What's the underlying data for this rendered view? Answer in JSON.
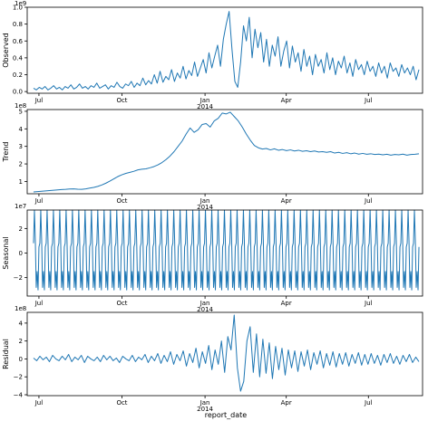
{
  "figure": {
    "xlabel": "report_date"
  },
  "colors": {
    "line": "#1f77b4",
    "axes": "#000000",
    "background": "#ffffff"
  },
  "chart_data": [
    {
      "type": "line",
      "ylabel": "Observed",
      "scale_label": "1e9",
      "x_ticks": [
        {
          "date": "2013-07-01",
          "label": "Jul",
          "sublabel": ""
        },
        {
          "date": "2013-10-01",
          "label": "Oct",
          "sublabel": ""
        },
        {
          "date": "2014-01-01",
          "label": "Jan",
          "sublabel": "2014"
        },
        {
          "date": "2014-04-01",
          "label": "Apr",
          "sublabel": ""
        },
        {
          "date": "2014-07-01",
          "label": "Jul",
          "sublabel": ""
        }
      ],
      "x_range": [
        "2013-06-18",
        "2014-08-30"
      ],
      "x_start": "2013-06-25",
      "x_end": "2014-08-26",
      "ylim": [
        -0.02,
        1.0
      ],
      "y_ticks": [
        0.0,
        0.2,
        0.4,
        0.6,
        0.8,
        1.0
      ],
      "y_tick_labels": [
        "0.0",
        "0.2",
        "0.4",
        "0.6",
        "0.8",
        "1.0"
      ],
      "values": [
        0.04,
        0.02,
        0.05,
        0.03,
        0.06,
        0.02,
        0.04,
        0.07,
        0.03,
        0.05,
        0.02,
        0.06,
        0.04,
        0.08,
        0.03,
        0.05,
        0.09,
        0.04,
        0.06,
        0.03,
        0.07,
        0.05,
        0.1,
        0.04,
        0.06,
        0.08,
        0.03,
        0.07,
        0.05,
        0.11,
        0.06,
        0.04,
        0.09,
        0.07,
        0.12,
        0.05,
        0.1,
        0.07,
        0.16,
        0.08,
        0.13,
        0.09,
        0.2,
        0.1,
        0.24,
        0.11,
        0.18,
        0.14,
        0.26,
        0.12,
        0.22,
        0.16,
        0.3,
        0.15,
        0.25,
        0.19,
        0.35,
        0.18,
        0.28,
        0.38,
        0.22,
        0.46,
        0.28,
        0.42,
        0.55,
        0.3,
        0.62,
        0.8,
        0.95,
        0.5,
        0.12,
        0.05,
        0.35,
        0.78,
        0.6,
        0.88,
        0.4,
        0.74,
        0.52,
        0.7,
        0.35,
        0.62,
        0.3,
        0.55,
        0.42,
        0.65,
        0.3,
        0.48,
        0.6,
        0.28,
        0.54,
        0.35,
        0.46,
        0.24,
        0.5,
        0.3,
        0.42,
        0.2,
        0.44,
        0.3,
        0.38,
        0.22,
        0.46,
        0.26,
        0.4,
        0.2,
        0.36,
        0.28,
        0.42,
        0.22,
        0.34,
        0.18,
        0.38,
        0.26,
        0.32,
        0.2,
        0.36,
        0.24,
        0.3,
        0.18,
        0.34,
        0.22,
        0.3,
        0.16,
        0.34,
        0.24,
        0.28,
        0.18,
        0.32,
        0.22,
        0.28,
        0.2,
        0.3,
        0.14,
        0.26
      ]
    },
    {
      "type": "line",
      "ylabel": "Trend",
      "scale_label": "1e8",
      "x_ticks": [
        {
          "date": "2013-07-01",
          "label": "Jul",
          "sublabel": ""
        },
        {
          "date": "2013-10-01",
          "label": "Oct",
          "sublabel": ""
        },
        {
          "date": "2014-01-01",
          "label": "Jan",
          "sublabel": "2014"
        },
        {
          "date": "2014-04-01",
          "label": "Apr",
          "sublabel": ""
        },
        {
          "date": "2014-07-01",
          "label": "Jul",
          "sublabel": ""
        }
      ],
      "x_range": [
        "2013-06-18",
        "2014-08-30"
      ],
      "x_start": "2013-06-25",
      "x_end": "2014-08-26",
      "ylim": [
        0.3,
        5.1
      ],
      "y_ticks": [
        1,
        2,
        3,
        4,
        5
      ],
      "y_tick_labels": [
        "1",
        "2",
        "3",
        "4",
        "5"
      ],
      "values": [
        0.4,
        0.42,
        0.44,
        0.46,
        0.48,
        0.5,
        0.52,
        0.54,
        0.55,
        0.57,
        0.58,
        0.56,
        0.55,
        0.58,
        0.62,
        0.66,
        0.72,
        0.8,
        0.9,
        1.02,
        1.15,
        1.28,
        1.38,
        1.46,
        1.52,
        1.58,
        1.66,
        1.7,
        1.72,
        1.78,
        1.85,
        1.95,
        2.08,
        2.25,
        2.45,
        2.7,
        3.0,
        3.3,
        3.7,
        4.05,
        3.8,
        3.95,
        4.25,
        4.3,
        4.1,
        4.45,
        4.6,
        4.9,
        4.85,
        4.95,
        4.7,
        4.45,
        4.1,
        3.7,
        3.35,
        3.05,
        2.92,
        2.85,
        2.88,
        2.8,
        2.86,
        2.78,
        2.82,
        2.76,
        2.8,
        2.74,
        2.78,
        2.72,
        2.75,
        2.7,
        2.74,
        2.68,
        2.7,
        2.66,
        2.7,
        2.62,
        2.66,
        2.6,
        2.64,
        2.58,
        2.62,
        2.56,
        2.6,
        2.55,
        2.58,
        2.54,
        2.56,
        2.52,
        2.55,
        2.5,
        2.54,
        2.52,
        2.56,
        2.5,
        2.54,
        2.55,
        2.58
      ]
    },
    {
      "type": "line",
      "ylabel": "Seasonal",
      "scale_label": "1e7",
      "x_ticks": [
        {
          "date": "2013-07-01",
          "label": "Jul",
          "sublabel": ""
        },
        {
          "date": "2013-10-01",
          "label": "Oct",
          "sublabel": ""
        },
        {
          "date": "2014-01-01",
          "label": "Jan",
          "sublabel": "2014"
        },
        {
          "date": "2014-04-01",
          "label": "Apr",
          "sublabel": ""
        },
        {
          "date": "2014-07-01",
          "label": "Jul",
          "sublabel": ""
        }
      ],
      "x_range": [
        "2013-06-18",
        "2014-08-30"
      ],
      "x_start": "2013-06-25",
      "x_end": "2014-08-26",
      "ylim": [
        -3.5,
        3.5
      ],
      "y_ticks": [
        -2,
        0,
        2
      ],
      "y_tick_labels": [
        "−2",
        "0",
        "2"
      ],
      "pattern": [
        0.8,
        3.5,
        1.0,
        -2.8,
        -1.5,
        -3.0,
        0.5
      ],
      "cycles": 61
    },
    {
      "type": "line",
      "ylabel": "Residual",
      "scale_label": "1e8",
      "x_ticks": [
        {
          "date": "2013-07-01",
          "label": "Jul",
          "sublabel": ""
        },
        {
          "date": "2013-10-01",
          "label": "Oct",
          "sublabel": ""
        },
        {
          "date": "2014-01-01",
          "label": "Jan",
          "sublabel": "2014"
        },
        {
          "date": "2014-04-01",
          "label": "Apr",
          "sublabel": ""
        },
        {
          "date": "2014-07-01",
          "label": "Jul",
          "sublabel": ""
        }
      ],
      "x_range": [
        "2013-06-18",
        "2014-08-30"
      ],
      "x_start": "2013-06-25",
      "x_end": "2014-08-26",
      "ylim": [
        -4.1,
        5.2
      ],
      "y_ticks": [
        -4,
        -2,
        0,
        2,
        4
      ],
      "y_tick_labels": [
        "−4",
        "−2",
        "0",
        "2",
        "4"
      ],
      "values": [
        0.1,
        -0.2,
        0.3,
        -0.1,
        0.2,
        -0.3,
        0.4,
        0.0,
        -0.2,
        0.3,
        -0.1,
        0.5,
        -0.3,
        0.2,
        -0.1,
        0.4,
        -0.4,
        0.3,
        0.0,
        -0.2,
        0.2,
        -0.3,
        0.4,
        -0.1,
        0.3,
        -0.2,
        0.1,
        -0.4,
        0.3,
        0.0,
        -0.2,
        0.4,
        -0.3,
        0.2,
        -0.1,
        0.5,
        -0.4,
        0.3,
        -0.2,
        0.6,
        -0.5,
        0.4,
        -0.3,
        0.8,
        -0.6,
        0.5,
        -0.2,
        0.9,
        -0.8,
        0.6,
        -0.4,
        1.2,
        -1.0,
        0.8,
        -0.5,
        1.5,
        -1.2,
        1.0,
        -0.6,
        2.0,
        -1.5,
        2.5,
        1.0,
        4.9,
        -1.0,
        -3.6,
        -2.5,
        2.0,
        3.6,
        -1.5,
        2.8,
        -2.0,
        2.2,
        -1.6,
        1.8,
        -2.2,
        1.4,
        -1.2,
        1.2,
        -1.8,
        1.0,
        -1.0,
        0.9,
        -1.4,
        0.8,
        -0.8,
        1.0,
        -1.2,
        0.7,
        -0.6,
        0.9,
        -1.0,
        0.6,
        -0.7,
        0.8,
        -0.9,
        0.6,
        -0.6,
        0.7,
        -0.8,
        0.5,
        -0.5,
        0.7,
        -0.7,
        0.5,
        -0.6,
        0.6,
        -0.5,
        0.4,
        -0.7,
        0.5,
        -0.4,
        0.6,
        -0.5,
        0.3,
        -0.6,
        0.4,
        -0.3,
        0.5,
        -0.4,
        0.2,
        -0.3
      ]
    }
  ]
}
